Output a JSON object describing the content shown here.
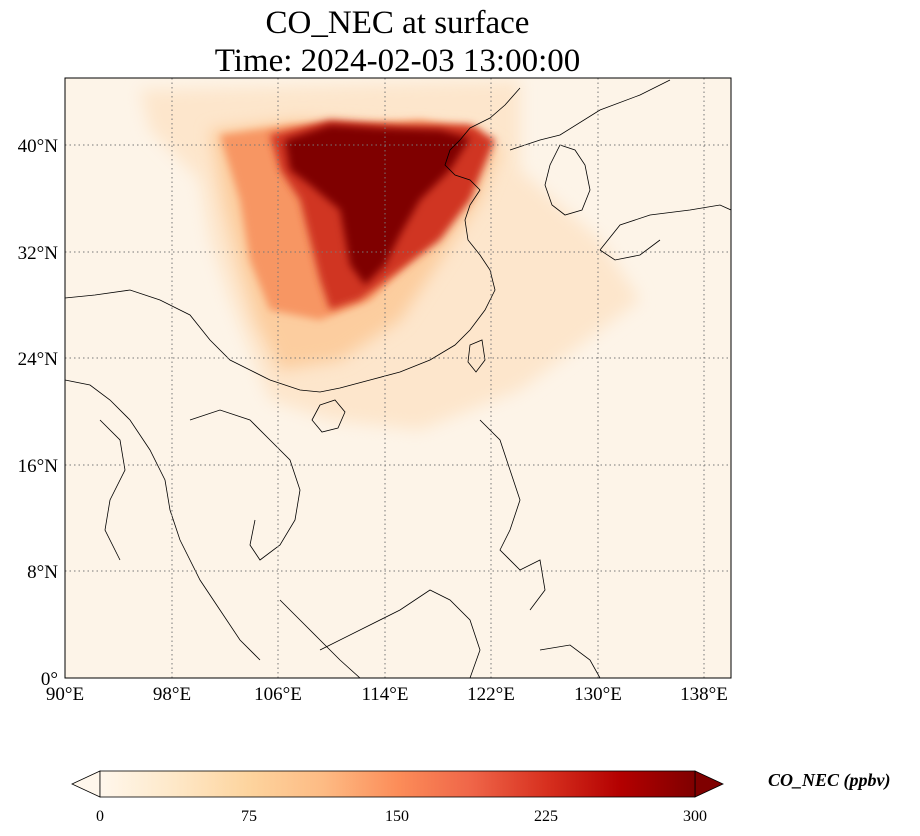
{
  "title": {
    "line1": "CO_NEC at surface",
    "line2": "Time: 2024-02-03 13:00:00"
  },
  "map": {
    "variable": "CO_NEC",
    "lon_range": [
      90,
      140
    ],
    "lat_range": [
      0,
      45
    ],
    "lon_ticks": [
      "90°E",
      "98°E",
      "106°E",
      "114°E",
      "122°E",
      "130°E",
      "138°E"
    ],
    "lat_ticks": [
      "0°",
      "8°N",
      "16°N",
      "24°N",
      "32°N",
      "40°N"
    ],
    "gridlines": "dotted",
    "colormap": "OrRd"
  },
  "colorbar": {
    "label": "CO_NEC (ppbv)",
    "ticks": [
      "0",
      "75",
      "150",
      "225",
      "300"
    ],
    "min": 0,
    "max": 300,
    "extend": "both",
    "colors": [
      "#fff7ec",
      "#fee8c8",
      "#fdd49e",
      "#fdbb84",
      "#fc8d59",
      "#ef6548",
      "#d7301f",
      "#b30000",
      "#7f0000"
    ]
  }
}
